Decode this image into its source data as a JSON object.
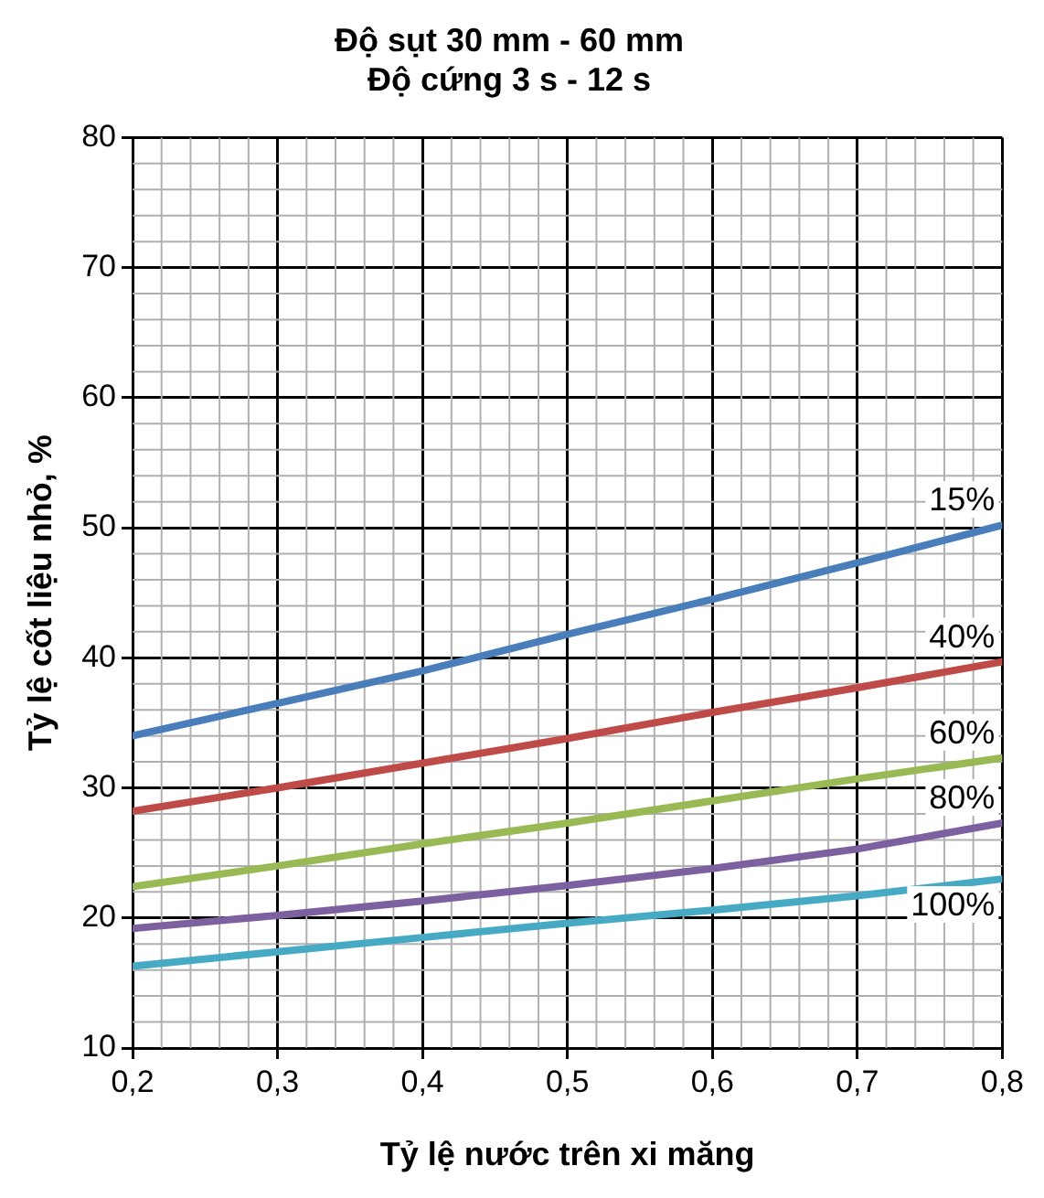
{
  "chart_data": {
    "type": "line",
    "title": "Độ sụt 30 mm - 60 mm",
    "subtitle": "Độ cứng 3 s - 12 s",
    "xlabel": "Tỷ lệ nước trên xi măng",
    "ylabel": "Tỷ lệ cốt liệu nhỏ, %",
    "x": [
      0.2,
      0.3,
      0.4,
      0.5,
      0.6,
      0.7,
      0.8
    ],
    "series": [
      {
        "name": "15%",
        "color": "#4a7ebb",
        "values": [
          34,
          36.5,
          39,
          41.8,
          44.5,
          47.3,
          50.2
        ]
      },
      {
        "name": "40%",
        "color": "#be4b48",
        "values": [
          28.2,
          30,
          31.9,
          33.8,
          35.8,
          37.7,
          39.7
        ]
      },
      {
        "name": "60%",
        "color": "#98b954",
        "values": [
          22.4,
          24,
          25.7,
          27.3,
          29,
          30.7,
          32.3
        ]
      },
      {
        "name": "80%",
        "color": "#7d60a0",
        "values": [
          19.2,
          20.2,
          21.3,
          22.5,
          23.8,
          25.3,
          27.3
        ]
      },
      {
        "name": "100%",
        "color": "#46aac5",
        "values": [
          16.3,
          17.4,
          18.5,
          19.6,
          20.6,
          21.7,
          23
        ]
      }
    ],
    "xlim": [
      0.2,
      0.8
    ],
    "xticks": [
      {
        "value": 0.2,
        "label": "0,2"
      },
      {
        "value": 0.3,
        "label": "0,3"
      },
      {
        "value": 0.4,
        "label": "0,4"
      },
      {
        "value": 0.5,
        "label": "0,5"
      },
      {
        "value": 0.6,
        "label": "0,6"
      },
      {
        "value": 0.7,
        "label": "0,7"
      },
      {
        "value": 0.8,
        "label": "0,8"
      }
    ],
    "ylim": [
      10,
      80
    ],
    "yticks": [
      10,
      20,
      30,
      40,
      50,
      60,
      70,
      80
    ],
    "grid": true,
    "legend": false,
    "marker": "none",
    "line_style": "solid"
  }
}
